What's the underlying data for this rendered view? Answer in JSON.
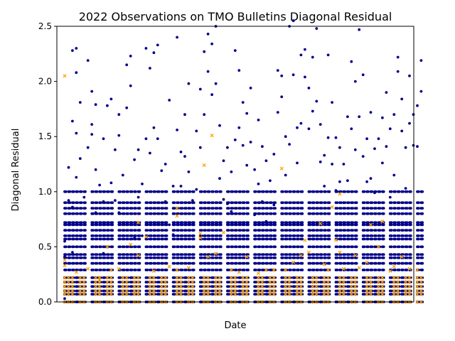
{
  "chart_data": {
    "type": "scatter",
    "title": "2022 Observations on TMO Bulletins Diagonal Residual",
    "xlabel": "Date",
    "ylabel": "Diagonal Residual",
    "ylim": [
      0,
      2.5
    ],
    "yticks": [
      0.0,
      0.5,
      1.0,
      1.5,
      2.0,
      2.5
    ],
    "ytick_labels": [
      "0.0",
      "0.5",
      "1.0",
      "1.5",
      "2.0",
      "2.5"
    ],
    "xticks": [],
    "grid": false,
    "legend": "none",
    "series": [
      {
        "color": "#00008b",
        "marker": "circle",
        "points": [
          [
            1,
            0.41
          ],
          [
            1,
            0.1
          ],
          [
            1,
            0.55
          ],
          [
            1,
            0.03
          ],
          [
            2,
            0.92
          ],
          [
            2,
            1.22
          ],
          [
            2,
            0.7
          ],
          [
            3,
            2.28
          ],
          [
            3,
            1.64
          ],
          [
            3,
            0.86
          ],
          [
            3,
            0.45
          ],
          [
            4,
            2.3
          ],
          [
            4,
            2.08
          ],
          [
            4,
            1.53
          ],
          [
            4,
            1.13
          ],
          [
            5,
            1.81
          ],
          [
            5,
            1.3
          ],
          [
            5,
            0.6
          ],
          [
            6,
            0.95
          ],
          [
            6,
            0.72
          ],
          [
            6,
            0.35
          ],
          [
            7,
            2.19
          ],
          [
            7,
            1.4
          ],
          [
            8,
            1.91
          ],
          [
            8,
            1.61
          ],
          [
            8,
            1.52
          ],
          [
            9,
            1.79
          ],
          [
            9,
            1.2
          ],
          [
            9,
            0.81
          ],
          [
            10,
            1.06
          ],
          [
            10,
            0.65
          ],
          [
            11,
            1.48
          ],
          [
            11,
            0.91
          ],
          [
            11,
            0.44
          ],
          [
            12,
            1.78
          ],
          [
            12,
            0.5
          ],
          [
            13,
            1.84
          ],
          [
            13,
            1.08
          ],
          [
            14,
            1.38
          ],
          [
            14,
            0.92
          ],
          [
            15,
            1.7
          ],
          [
            15,
            1.51
          ],
          [
            15,
            0.81
          ],
          [
            16,
            1.15
          ],
          [
            16,
            0.6
          ],
          [
            17,
            2.15
          ],
          [
            17,
            1.76
          ],
          [
            18,
            1.96
          ],
          [
            18,
            2.23
          ],
          [
            19,
            1.29
          ],
          [
            19,
            0.58
          ],
          [
            20,
            1.38
          ],
          [
            20,
            0.95
          ],
          [
            21,
            1.07
          ],
          [
            21,
            0.6
          ],
          [
            22,
            2.3
          ],
          [
            22,
            1.48
          ],
          [
            23,
            2.12
          ],
          [
            23,
            1.35
          ],
          [
            24,
            2.26
          ],
          [
            24,
            1.58
          ],
          [
            25,
            2.33
          ],
          [
            25,
            1.48
          ],
          [
            26,
            1.19
          ],
          [
            26,
            0.8
          ],
          [
            27,
            1.25
          ],
          [
            27,
            0.91
          ],
          [
            28,
            1.83
          ],
          [
            28,
            0.7
          ],
          [
            29,
            1.05
          ],
          [
            29,
            0.61
          ],
          [
            30,
            2.4
          ],
          [
            30,
            1.56
          ],
          [
            31,
            1.36
          ],
          [
            31,
            1.05
          ],
          [
            32,
            1.7
          ],
          [
            32,
            1.32
          ],
          [
            33,
            1.98
          ],
          [
            33,
            1.18
          ],
          [
            34,
            0.92
          ],
          [
            34,
            0.6
          ],
          [
            35,
            1.55
          ],
          [
            35,
            1.02
          ],
          [
            36,
            1.93
          ],
          [
            36,
            1.4
          ],
          [
            37,
            2.27
          ],
          [
            37,
            1.7
          ],
          [
            38,
            2.43
          ],
          [
            38,
            2.09
          ],
          [
            39,
            2.34
          ],
          [
            39,
            1.88
          ],
          [
            40,
            2.5
          ],
          [
            40,
            1.98
          ],
          [
            41,
            1.6
          ],
          [
            41,
            1.12
          ],
          [
            42,
            1.28
          ],
          [
            42,
            0.93
          ],
          [
            43,
            1.4
          ],
          [
            43,
            0.89
          ],
          [
            44,
            1.18
          ],
          [
            44,
            0.82
          ],
          [
            45,
            2.28
          ],
          [
            45,
            1.47
          ],
          [
            46,
            1.58
          ],
          [
            46,
            2.1
          ],
          [
            47,
            1.81
          ],
          [
            47,
            1.42
          ],
          [
            48,
            1.71
          ],
          [
            48,
            1.24
          ],
          [
            49,
            1.94
          ],
          [
            49,
            1.45
          ],
          [
            50,
            1.2
          ],
          [
            50,
            0.79
          ],
          [
            51,
            1.65
          ],
          [
            51,
            1.07
          ],
          [
            52,
            1.41
          ],
          [
            52,
            0.91
          ],
          [
            53,
            1.28
          ],
          [
            53,
            0.73
          ],
          [
            54,
            1.1
          ],
          [
            54,
            0.72
          ],
          [
            55,
            1.34
          ],
          [
            55,
            0.88
          ],
          [
            56,
            2.1
          ],
          [
            56,
            1.72
          ],
          [
            57,
            2.05
          ],
          [
            57,
            1.86
          ],
          [
            58,
            1.5
          ],
          [
            58,
            1.15
          ],
          [
            59,
            2.5
          ],
          [
            59,
            1.43
          ],
          [
            60,
            2.55
          ],
          [
            60,
            2.06
          ],
          [
            61,
            1.58
          ],
          [
            61,
            1.26
          ],
          [
            62,
            2.24
          ],
          [
            62,
            1.62
          ],
          [
            63,
            2.04
          ],
          [
            63,
            2.29
          ],
          [
            64,
            1.94
          ],
          [
            64,
            1.57
          ],
          [
            65,
            2.22
          ],
          [
            65,
            1.73
          ],
          [
            66,
            2.48
          ],
          [
            66,
            1.82
          ],
          [
            67,
            1.61
          ],
          [
            67,
            1.27
          ],
          [
            68,
            1.33
          ],
          [
            68,
            1.05
          ],
          [
            69,
            2.24
          ],
          [
            69,
            1.49
          ],
          [
            70,
            1.81
          ],
          [
            70,
            1.25
          ],
          [
            71,
            1.49
          ],
          [
            71,
            1.01
          ],
          [
            72,
            1.4
          ],
          [
            72,
            1.09
          ],
          [
            73,
            1.25
          ],
          [
            73,
            0.9
          ],
          [
            74,
            1.68
          ],
          [
            74,
            1.1
          ],
          [
            75,
            2.18
          ],
          [
            75,
            1.57
          ],
          [
            76,
            2.0
          ],
          [
            76,
            1.38
          ],
          [
            77,
            2.47
          ],
          [
            77,
            1.68
          ],
          [
            78,
            2.06
          ],
          [
            78,
            1.32
          ],
          [
            79,
            1.48
          ],
          [
            79,
            1.09
          ],
          [
            80,
            1.72
          ],
          [
            80,
            1.12
          ],
          [
            81,
            1.39
          ],
          [
            81,
            0.99
          ],
          [
            82,
            1.48
          ],
          [
            82,
            0.9
          ],
          [
            83,
            1.67
          ],
          [
            83,
            1.26
          ],
          [
            84,
            1.9
          ],
          [
            84,
            1.41
          ],
          [
            85,
            1.57
          ],
          [
            85,
            0.95
          ],
          [
            86,
            1.7
          ],
          [
            86,
            1.15
          ],
          [
            87,
            2.22
          ],
          [
            87,
            2.09
          ],
          [
            88,
            1.84
          ],
          [
            88,
            1.55
          ],
          [
            89,
            1.4
          ],
          [
            89,
            1.03
          ],
          [
            90,
            2.05
          ],
          [
            90,
            1.62
          ],
          [
            91,
            1.7
          ],
          [
            91,
            1.42
          ],
          [
            92,
            1.78
          ],
          [
            92,
            1.41
          ],
          [
            93,
            2.19
          ],
          [
            93,
            1.91
          ]
        ],
        "band_rows": [
          0.0,
          0.07,
          0.1,
          0.14,
          0.18,
          0.22,
          0.29,
          0.35,
          0.4,
          0.43,
          0.5,
          0.57,
          0.6,
          0.65,
          0.7,
          0.72,
          0.8,
          0.85,
          0.9,
          1.0
        ],
        "band_columns": [
          1,
          2,
          3,
          4,
          5,
          6,
          8,
          9,
          10,
          11,
          12,
          13,
          15,
          16,
          17,
          18,
          19,
          20,
          22,
          23,
          24,
          25,
          26,
          27,
          29,
          30,
          31,
          32,
          33,
          34,
          36,
          37,
          38,
          39,
          40,
          41,
          43,
          44,
          45,
          46,
          47,
          48,
          50,
          51,
          52,
          53,
          54,
          55,
          57,
          58,
          59,
          60,
          61,
          62,
          64,
          65,
          66,
          67,
          68,
          69,
          71,
          72,
          73,
          74,
          75,
          76,
          78,
          79,
          80,
          81,
          82,
          83,
          85,
          86,
          87,
          88,
          89,
          90,
          92,
          93
        ]
      },
      {
        "color": "#ffa500",
        "marker": "x",
        "points": [
          [
            1,
            2.05
          ],
          [
            1,
            0.38
          ],
          [
            1,
            0.33
          ],
          [
            4,
            0.27
          ],
          [
            7,
            0.3
          ],
          [
            10,
            0.2
          ],
          [
            12,
            0.5
          ],
          [
            13,
            0.29
          ],
          [
            15,
            0.3
          ],
          [
            18,
            0.52
          ],
          [
            20,
            0.72
          ],
          [
            20,
            0.42
          ],
          [
            22,
            0.59
          ],
          [
            24,
            0.28
          ],
          [
            28,
            0.32
          ],
          [
            30,
            0.85
          ],
          [
            30,
            0.78
          ],
          [
            30,
            0.29
          ],
          [
            33,
            0.31
          ],
          [
            36,
            0.58
          ],
          [
            36,
            0.62
          ],
          [
            37,
            1.24
          ],
          [
            38,
            0.41
          ],
          [
            39,
            1.51
          ],
          [
            40,
            0.44
          ],
          [
            42,
            0.63
          ],
          [
            44,
            0.29
          ],
          [
            46,
            0.27
          ],
          [
            48,
            0.41
          ],
          [
            51,
            0.26
          ],
          [
            53,
            0.29
          ],
          [
            55,
            0.29
          ],
          [
            57,
            1.21
          ],
          [
            58,
            0.29
          ],
          [
            60,
            0.36
          ],
          [
            62,
            0.42
          ],
          [
            63,
            0.56
          ],
          [
            64,
            0.45
          ],
          [
            67,
            0.71
          ],
          [
            68,
            0.34
          ],
          [
            69,
            0.29
          ],
          [
            70,
            0.86
          ],
          [
            71,
            0.56
          ],
          [
            72,
            0.98
          ],
          [
            72,
            0.45
          ],
          [
            73,
            0.3
          ],
          [
            76,
            0.42
          ],
          [
            77,
            0.31
          ],
          [
            79,
            0.36
          ],
          [
            80,
            0.7
          ],
          [
            82,
            0.5
          ],
          [
            83,
            0.73
          ],
          [
            85,
            0.28
          ],
          [
            86,
            0.32
          ],
          [
            88,
            0.41
          ],
          [
            90,
            0.3
          ],
          [
            92,
            0.29
          ]
        ],
        "band_rows": [
          0.0,
          0.07,
          0.1,
          0.14,
          0.18,
          0.22
        ],
        "band_columns": [
          1,
          2,
          3,
          5,
          6,
          9,
          10,
          12,
          13,
          16,
          17,
          19,
          20,
          23,
          24,
          26,
          27,
          30,
          31,
          33,
          34,
          37,
          38,
          40,
          41,
          44,
          45,
          47,
          48,
          51,
          52,
          54,
          55,
          58,
          59,
          61,
          62,
          65,
          66,
          68,
          69,
          72,
          73,
          75,
          76,
          79,
          80,
          82,
          83,
          86,
          87,
          89,
          90,
          92,
          93
        ]
      }
    ]
  }
}
